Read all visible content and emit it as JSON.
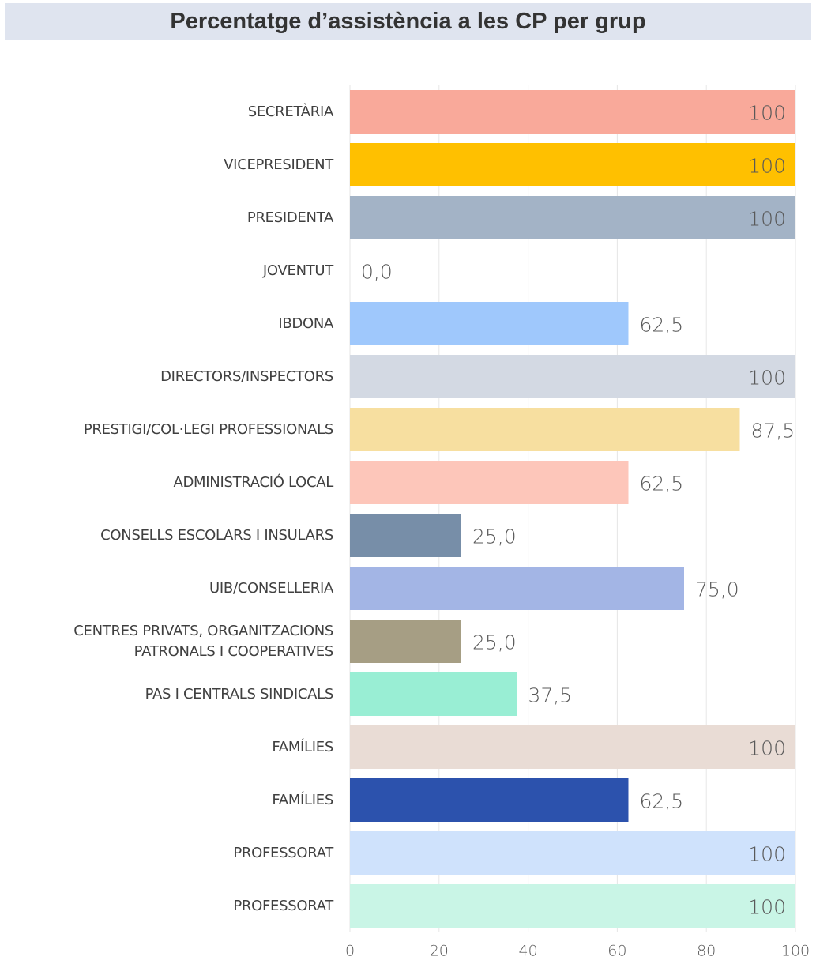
{
  "chart_data": {
    "type": "bar",
    "orientation": "horizontal",
    "title": "Percentatge d’assistència a les CP per grup",
    "categories": [
      "SECRETÀRIA",
      "VICEPRESIDENT",
      "PRESIDENTA",
      "JOVENTUT",
      "IBDONA",
      "DIRECTORS/INSPECTORS",
      "PRESTIGI/COL·LEGI PROFESSIONALS",
      "ADMINISTRACIÓ LOCAL",
      "CONSELLS ESCOLARS I INSULARS",
      "UIB/CONSELLERIA",
      "CENTRES PRIVATS, ORGANITZACIONS\nPATRONALS I COOPERATIVES",
      "PAS I CENTRALS SINDICALS",
      "FAMÍLIES",
      "FAMÍLIES",
      "PROFESSORAT",
      "PROFESSORAT"
    ],
    "values": [
      100,
      100,
      100,
      0,
      62.5,
      100,
      87.5,
      62.5,
      25,
      75,
      25,
      37.5,
      100,
      62.5,
      100,
      100
    ],
    "value_labels": [
      "100",
      "100",
      "100",
      "0,0",
      "62,5",
      "100",
      "87,5",
      "62,5",
      "25,0",
      "75,0",
      "25,0",
      "37,5",
      "100",
      "62,5",
      "100",
      "100"
    ],
    "colors": [
      "#f9a99a",
      "#ffc000",
      "#a3b3c6",
      "#b7d0e8",
      "#9fc8fc",
      "#d3d9e3",
      "#f7dfa0",
      "#fdc6ba",
      "#778ea8",
      "#a3b5e5",
      "#a69e84",
      "#99eed4",
      "#e9dcd5",
      "#2c52ad",
      "#cfe2fc",
      "#c9f5e6"
    ],
    "xlim": [
      0,
      100
    ],
    "xticks": [
      0,
      20,
      40,
      60,
      80,
      100
    ],
    "grid": true
  }
}
